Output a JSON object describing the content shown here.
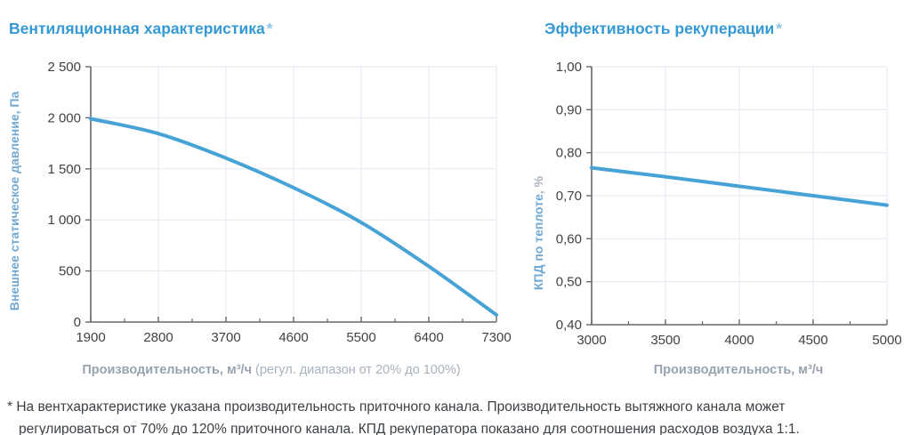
{
  "colors": {
    "title_blue": "#3599d3",
    "asterisk_blue": "#8fc6e7",
    "curve_blue": "#47a3d5",
    "axis_title_blue": "#72a9d4",
    "axis_title_gray": "#a9b3be",
    "xaxis_title_gray": "#98a3b0",
    "tick_text": "#3f4245",
    "axis_line": "#66696d",
    "grid": "#e1e9f0"
  },
  "charts": {
    "ventilation": {
      "title": "Вентиляционная характеристика",
      "asterisk": "*",
      "ylabel": "Внешнее статическое давление, Па",
      "xlabel_bold": "Производительность, м³/ч",
      "xlabel_note": " (регул. диапазон от 20% до 100%)"
    },
    "recuperation": {
      "title": "Эффективность рекуперации",
      "asterisk": "*",
      "ylabel_main": "КПД по теплоте",
      "ylabel_suffix": ", %",
      "xlabel_bold": "Производительность, м³/ч"
    }
  },
  "chart_data": [
    {
      "type": "line",
      "title": "Вентиляционная характеристика *",
      "xlabel": "Производительность, м³/ч (регул. диапазон от 20% до 100%)",
      "ylabel": "Внешнее статическое давление, Па",
      "x": [
        1900,
        2800,
        3700,
        4600,
        5500,
        6400,
        7300
      ],
      "y": [
        1990,
        1845,
        1605,
        1315,
        975,
        545,
        70
      ],
      "xlim": [
        1900,
        7300
      ],
      "ylim": [
        0,
        2500
      ],
      "xtick_values": [
        1900,
        2800,
        3700,
        4600,
        5500,
        6400,
        7300
      ],
      "xtick_labels": [
        "1900",
        "2800",
        "3700",
        "4600",
        "5500",
        "6400",
        "7300"
      ],
      "ytick_values": [
        0,
        500,
        1000,
        1500,
        2000,
        2500
      ],
      "ytick_labels": [
        "0",
        "500",
        "1 000",
        "1 500",
        "2 000",
        "2 500"
      ],
      "grid": true,
      "legend": false,
      "line_color": "#47a3d5"
    },
    {
      "type": "line",
      "title": "Эффективность рекуперации *",
      "xlabel": "Производительность, м³/ч",
      "ylabel": "КПД по теплоте, %",
      "x": [
        3000,
        3500,
        4000,
        4500,
        5000
      ],
      "y": [
        0.765,
        0.744,
        0.722,
        0.7,
        0.678
      ],
      "xlim": [
        3000,
        5000
      ],
      "ylim": [
        0.4,
        1.0
      ],
      "xtick_values": [
        3000,
        3500,
        4000,
        4500,
        5000
      ],
      "xtick_labels": [
        "3000",
        "3500",
        "4000",
        "4500",
        "5000"
      ],
      "ytick_values": [
        0.4,
        0.5,
        0.6,
        0.7,
        0.8,
        0.9,
        1.0
      ],
      "ytick_labels": [
        "0,40",
        "0,50",
        "0,60",
        "0,70",
        "0,80",
        "0,90",
        "1,00"
      ],
      "grid": true,
      "legend": false,
      "line_color": "#47a3d5"
    }
  ],
  "footnote": {
    "text": "* На вентхарактеристике указана производительность приточного канала. Производительность вытяжного канала может\nрегулироваться от 70% до 120% приточного канала. КПД рекуператора показано для соотношения расходов воздуха 1:1."
  }
}
